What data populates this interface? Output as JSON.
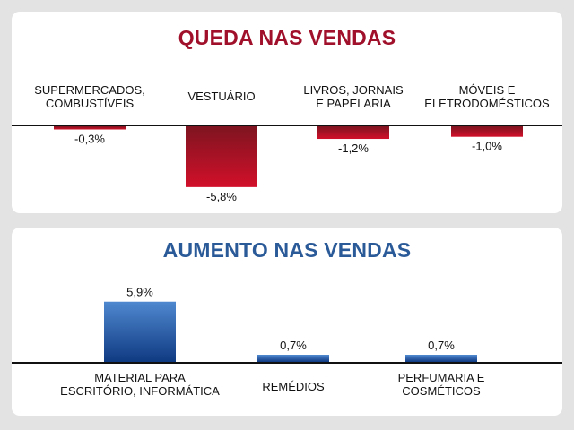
{
  "colors": {
    "decrease_title": "#a0102a",
    "increase_title": "#2b5a98",
    "decrease_bar_top": "#7e1420",
    "decrease_bar_bottom": "#d2102a",
    "increase_bar_top": "#4f88cf",
    "increase_bar_bottom": "#0f3a82",
    "baseline": "#111111",
    "background": "#e3e3e3",
    "panel": "#ffffff"
  },
  "chart_data": [
    {
      "type": "bar",
      "title": "QUEDA NAS VENDAS",
      "categories": [
        [
          "SUPERMERCADOS,",
          "COMBUSTÍVEIS"
        ],
        [
          "VESTUÁRIO"
        ],
        [
          "LIVROS, JORNAIS",
          "E PAPELARIA"
        ],
        [
          "MÓVEIS E",
          "ELETRODOMÉSTICOS"
        ]
      ],
      "values": [
        -0.3,
        -5.8,
        -1.2,
        -1.0
      ],
      "value_labels": [
        "-0,3%",
        "-5,8%",
        "-1,2%",
        "-1,0%"
      ],
      "unit": "%",
      "category_position": "above baseline",
      "grid": false,
      "legend": "none"
    },
    {
      "type": "bar",
      "title": "AUMENTO NAS VENDAS",
      "categories": [
        [
          "MATERIAL PARA",
          "ESCRITÓRIO, INFORMÁTICA"
        ],
        [
          "REMÉDIOS"
        ],
        [
          "PERFUMARIA E",
          "COSMÉTICOS"
        ]
      ],
      "values": [
        5.9,
        0.7,
        0.7
      ],
      "value_labels": [
        "5,9%",
        "0,7%",
        "0,7%"
      ],
      "unit": "%",
      "category_position": "below baseline",
      "grid": false,
      "legend": "none"
    }
  ]
}
